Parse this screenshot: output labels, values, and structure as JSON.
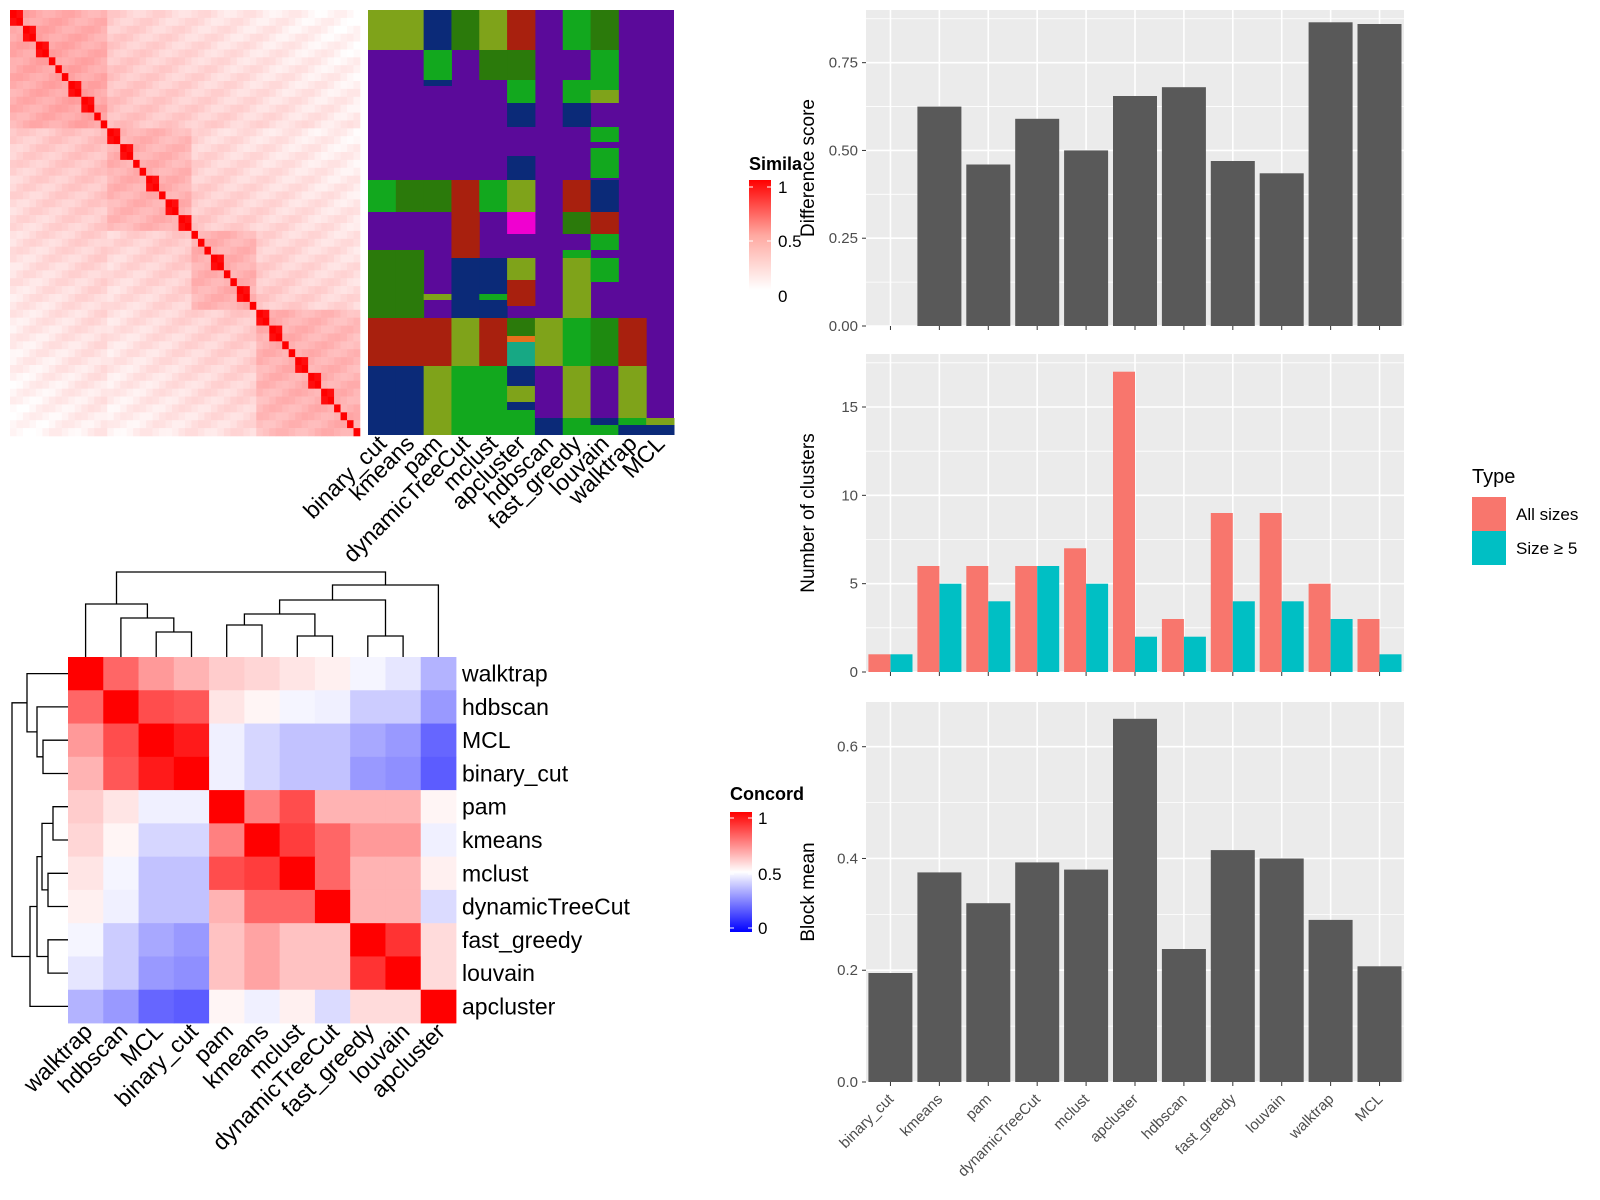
{
  "methods": [
    "binary_cut",
    "kmeans",
    "pam",
    "dynamicTreeCut",
    "mclust",
    "apcluster",
    "hdbscan",
    "fast_greedy",
    "louvain",
    "walktrap",
    "MCL"
  ],
  "legends": {
    "similarity": {
      "title": "Simila",
      "ticks": [
        "1",
        "0.5",
        "0"
      ]
    },
    "concordance": {
      "title": "Concord",
      "ticks": [
        "1",
        "0.5",
        "0"
      ]
    },
    "type": {
      "title": "Type",
      "entries": [
        "All sizes",
        "Size ≥ 5"
      ]
    }
  },
  "colors": {
    "bar": "#595959",
    "all_sizes": "#F8766D",
    "size_ge5": "#00BFC4",
    "panel_bg": "#EBEBEB",
    "similarity_high": "#FF0000",
    "concordance_low": "#0000FF",
    "membership_background": "#5B0A9A"
  },
  "chart_data": [
    {
      "type": "heatmap",
      "title": "",
      "xlabel": "",
      "ylabel": "",
      "legend_title": "Simila",
      "scale": [
        0,
        1
      ],
      "description_values": "square similarity matrix of rows sorted by consensus cluster, strong diagonal blocks"
    },
    {
      "type": "heatmap",
      "title": "",
      "xlabel": "",
      "ylabel": "",
      "x": [
        "binary_cut",
        "kmeans",
        "pam",
        "dynamicTreeCut",
        "mclust",
        "apcluster",
        "hdbscan",
        "fast_greedy",
        "louvain",
        "walktrap",
        "MCL"
      ]
    },
    {
      "type": "heatmap",
      "title": "",
      "xlabel": "",
      "ylabel": "",
      "legend_title": "Concord",
      "scale": [
        0,
        1
      ],
      "x": [
        "walktrap",
        "hdbscan",
        "MCL",
        "binary_cut",
        "pam",
        "kmeans",
        "mclust",
        "dynamicTreeCut",
        "fast_greedy",
        "louvain",
        "apcluster"
      ],
      "y": [
        "walktrap",
        "hdbscan",
        "MCL",
        "binary_cut",
        "pam",
        "kmeans",
        "mclust",
        "dynamicTreeCut",
        "fast_greedy",
        "louvain",
        "apcluster"
      ],
      "values": [
        [
          1.0,
          0.8,
          0.7,
          0.65,
          0.6,
          0.58,
          0.55,
          0.53,
          0.48,
          0.45,
          0.35
        ],
        [
          0.8,
          1.0,
          0.85,
          0.83,
          0.55,
          0.52,
          0.48,
          0.47,
          0.4,
          0.4,
          0.3
        ],
        [
          0.7,
          0.85,
          1.0,
          0.95,
          0.47,
          0.42,
          0.38,
          0.38,
          0.33,
          0.3,
          0.2
        ],
        [
          0.65,
          0.83,
          0.95,
          1.0,
          0.47,
          0.42,
          0.38,
          0.38,
          0.3,
          0.28,
          0.18
        ],
        [
          0.6,
          0.55,
          0.47,
          0.47,
          1.0,
          0.75,
          0.85,
          0.65,
          0.65,
          0.65,
          0.52
        ],
        [
          0.58,
          0.52,
          0.42,
          0.42,
          0.75,
          1.0,
          0.88,
          0.8,
          0.7,
          0.7,
          0.47
        ],
        [
          0.55,
          0.48,
          0.38,
          0.38,
          0.85,
          0.88,
          1.0,
          0.8,
          0.65,
          0.65,
          0.53
        ],
        [
          0.53,
          0.47,
          0.38,
          0.38,
          0.65,
          0.8,
          0.8,
          1.0,
          0.65,
          0.65,
          0.43
        ],
        [
          0.48,
          0.4,
          0.33,
          0.3,
          0.62,
          0.68,
          0.62,
          0.62,
          1.0,
          0.9,
          0.57
        ],
        [
          0.45,
          0.4,
          0.3,
          0.28,
          0.62,
          0.68,
          0.62,
          0.62,
          0.9,
          1.0,
          0.57
        ],
        [
          0.35,
          0.3,
          0.2,
          0.18,
          0.52,
          0.47,
          0.53,
          0.43,
          0.57,
          0.57,
          1.0
        ]
      ]
    },
    {
      "type": "bar",
      "title": "",
      "xlabel": "",
      "ylabel": "Difference score",
      "categories": [
        "binary_cut",
        "kmeans",
        "pam",
        "dynamicTreeCut",
        "mclust",
        "apcluster",
        "hdbscan",
        "fast_greedy",
        "louvain",
        "walktrap",
        "MCL"
      ],
      "values": [
        0,
        0.625,
        0.46,
        0.59,
        0.5,
        0.655,
        0.68,
        0.47,
        0.435,
        0.865,
        0.86
      ],
      "ylim": [
        0,
        0.9
      ],
      "yticks": [
        "0.00",
        "0.25",
        "0.50",
        "0.75"
      ],
      "grid": true
    },
    {
      "type": "bar",
      "title": "",
      "xlabel": "",
      "ylabel": "Number of clusters",
      "categories": [
        "binary_cut",
        "kmeans",
        "pam",
        "dynamicTreeCut",
        "mclust",
        "apcluster",
        "hdbscan",
        "fast_greedy",
        "louvain",
        "walktrap",
        "MCL"
      ],
      "series": [
        {
          "name": "All sizes",
          "values": [
            1,
            6,
            6,
            6,
            7,
            17,
            3,
            9,
            9,
            5,
            3
          ]
        },
        {
          "name": "Size ≥ 5",
          "values": [
            1,
            5,
            4,
            6,
            5,
            2,
            2,
            4,
            4,
            3,
            1
          ]
        }
      ],
      "ylim": [
        0,
        18
      ],
      "yticks": [
        "0",
        "5",
        "10",
        "15"
      ],
      "legend": "right",
      "grid": true
    },
    {
      "type": "bar",
      "title": "",
      "xlabel": "",
      "ylabel": "Block mean",
      "categories": [
        "binary_cut",
        "kmeans",
        "pam",
        "dynamicTreeCut",
        "mclust",
        "apcluster",
        "hdbscan",
        "fast_greedy",
        "louvain",
        "walktrap",
        "MCL"
      ],
      "values": [
        0.195,
        0.375,
        0.32,
        0.393,
        0.38,
        0.65,
        0.238,
        0.415,
        0.4,
        0.29,
        0.207
      ],
      "ylim": [
        0,
        0.68
      ],
      "yticks": [
        "0.0",
        "0.2",
        "0.4",
        "0.6"
      ],
      "grid": true
    }
  ]
}
